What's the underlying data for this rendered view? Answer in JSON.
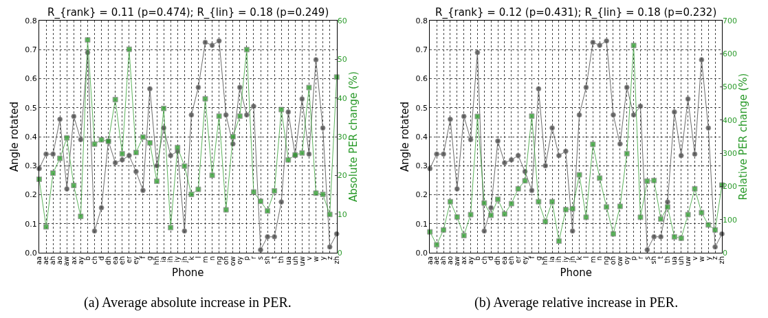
{
  "chart_data": [
    {
      "type": "line",
      "title": "R_{rank} = 0.11 (p=0.474); R_{lin} = 0.18 (p=0.249)",
      "xlabel": "Phone",
      "ylabel": "Angle rotated",
      "y2label": "Absolute PER change (%)",
      "categories": [
        "aa",
        "ae",
        "ah",
        "ao",
        "aw",
        "ax",
        "ay",
        "b",
        "ch",
        "d",
        "dh",
        "ea",
        "eh",
        "er",
        "ey",
        "f",
        "g",
        "hh",
        "ia",
        "ih",
        "iy",
        "jh",
        "k",
        "l",
        "m",
        "n",
        "ng",
        "oh",
        "ow",
        "oy",
        "p",
        "r",
        "s",
        "sh",
        "t",
        "th",
        "ua",
        "uh",
        "uw",
        "v",
        "w",
        "y",
        "z",
        "zh"
      ],
      "series": [
        {
          "color": "#444444",
          "marker": "circle",
          "values": [
            0.29,
            0.34,
            0.34,
            0.46,
            0.22,
            0.47,
            0.39,
            0.69,
            0.075,
            0.155,
            0.385,
            0.31,
            0.32,
            0.335,
            0.28,
            0.215,
            0.565,
            0.3,
            0.43,
            0.335,
            0.35,
            0.075,
            0.475,
            0.57,
            0.725,
            0.715,
            0.73,
            0.475,
            0.375,
            0.57,
            0.475,
            0.505,
            0.01,
            0.055,
            0.055,
            0.175,
            0.485,
            0.335,
            0.53,
            0.34,
            0.665,
            0.43,
            0.02,
            0.065
          ]
        },
        {
          "color": "#33a033",
          "marker": "square",
          "axis": "y2",
          "values": [
            19,
            6.7,
            20.6,
            24.4,
            29.7,
            17.4,
            9.4,
            55,
            28.1,
            29.2,
            28.8,
            39.6,
            25.6,
            52.6,
            25.9,
            29.9,
            28.4,
            18.5,
            37.3,
            6.5,
            27.2,
            22.4,
            15.1,
            16.4,
            39.8,
            20,
            35.3,
            11.1,
            30,
            35.3,
            52.5,
            15.7,
            13.3,
            10.8,
            16,
            37,
            24,
            25.3,
            25.8,
            42.7,
            15.4,
            15.1,
            9.9,
            45.4
          ]
        }
      ],
      "ylim": [
        0,
        0.8
      ],
      "yticks": [
        {
          "value": 0,
          "label": "0.0"
        },
        0.1,
        0.2,
        0.3,
        0.4,
        0.5,
        0.6,
        0.7,
        0.8
      ],
      "y2lim": [
        0,
        60
      ],
      "y2ticks": [
        0,
        10,
        20,
        30,
        40,
        50,
        60
      ],
      "grid": true,
      "line_style": "solid",
      "annotations": [
        "(a) Average absolute increase in PER."
      ]
    },
    {
      "type": "line",
      "title": "R_{rank} = 0.12 (p=0.431); R_{lin} = 0.18 (p=0.232)",
      "xlabel": "Phone",
      "ylabel": "Angle rotated",
      "y2label": "Relative PER change (%)",
      "categories": [
        "aa",
        "ae",
        "ah",
        "ao",
        "aw",
        "ax",
        "ay",
        "b",
        "ch",
        "d",
        "dh",
        "ea",
        "eh",
        "er",
        "ey",
        "f",
        "g",
        "hh",
        "ia",
        "ih",
        "iy",
        "jh",
        "k",
        "l",
        "m",
        "n",
        "ng",
        "oh",
        "ow",
        "oy",
        "p",
        "r",
        "s",
        "sh",
        "t",
        "th",
        "ua",
        "uh",
        "uw",
        "v",
        "w",
        "y",
        "z",
        "zh"
      ],
      "series": [
        {
          "color": "#444444",
          "marker": "circle",
          "values": [
            0.29,
            0.34,
            0.34,
            0.46,
            0.22,
            0.47,
            0.39,
            0.69,
            0.075,
            0.155,
            0.385,
            0.31,
            0.32,
            0.335,
            0.28,
            0.215,
            0.565,
            0.3,
            0.43,
            0.335,
            0.35,
            0.075,
            0.475,
            0.57,
            0.725,
            0.715,
            0.73,
            0.475,
            0.375,
            0.57,
            0.475,
            0.505,
            0.01,
            0.055,
            0.055,
            0.175,
            0.485,
            0.335,
            0.53,
            0.34,
            0.665,
            0.43,
            0.02,
            0.065
          ]
        },
        {
          "color": "#33a033",
          "marker": "square",
          "axis": "y2",
          "values": [
            63,
            24,
            69,
            154,
            108,
            52,
            115,
            411,
            150,
            113,
            161,
            117,
            148,
            193,
            217,
            412,
            154,
            94,
            154,
            35,
            130,
            133,
            235,
            107,
            327,
            225,
            138,
            57,
            140,
            299,
            625,
            107,
            216,
            218,
            102,
            138,
            48,
            44,
            115,
            193,
            121,
            84,
            69,
            204
          ]
        }
      ],
      "ylim": [
        0,
        0.8
      ],
      "yticks": [
        {
          "value": 0,
          "label": "0.0"
        },
        0.1,
        0.2,
        0.3,
        0.4,
        0.5,
        0.6,
        0.7,
        0.8
      ],
      "y2lim": [
        0,
        700
      ],
      "y2ticks": [
        0,
        100,
        200,
        300,
        400,
        500,
        600,
        700
      ],
      "grid": true,
      "line_style": "solid",
      "annotations": [
        "(b) Average relative increase in PER."
      ]
    }
  ]
}
